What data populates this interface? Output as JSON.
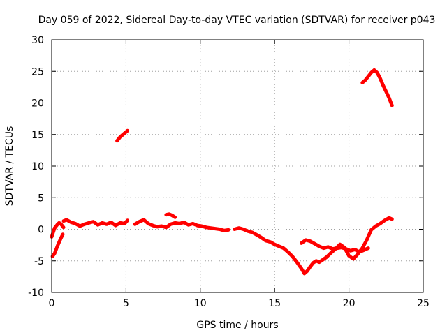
{
  "chart_data": {
    "type": "line",
    "title": "Day 059 of 2022, Sidereal Day-to-day VTEC variation (SDTVAR) for receiver p043",
    "xlabel": "GPS time / hours",
    "ylabel": "SDTVAR / TECUs",
    "xlim": [
      0,
      25
    ],
    "ylim": [
      -10,
      30
    ],
    "xticks": [
      0,
      5,
      10,
      15,
      20,
      25
    ],
    "yticks": [
      -10,
      -5,
      0,
      5,
      10,
      15,
      20,
      25,
      30
    ],
    "xtick_labels": [
      "0",
      "5",
      "10",
      "15",
      "20",
      "25"
    ],
    "ytick_labels": [
      "-10",
      "-5",
      "0",
      "5",
      "10",
      "15",
      "20",
      "25",
      "30"
    ],
    "grid": true,
    "series": [
      {
        "name": "seg1",
        "color": "#ff0000",
        "x": [
          0.0,
          0.1,
          0.2,
          0.3,
          0.4,
          0.5,
          0.6,
          0.7,
          0.8
        ],
        "y": [
          -1.2,
          -0.5,
          0.2,
          0.5,
          0.8,
          1.0,
          0.9,
          0.6,
          0.3
        ]
      },
      {
        "name": "seg2",
        "color": "#ff0000",
        "x": [
          0.05,
          0.2,
          0.4,
          0.6,
          0.75
        ],
        "y": [
          -4.3,
          -3.8,
          -2.6,
          -1.5,
          -0.8
        ]
      },
      {
        "name": "seg3",
        "color": "#ff0000",
        "x": [
          0.8,
          1.0,
          1.3,
          1.6,
          1.9,
          2.2,
          2.5,
          2.8,
          3.1,
          3.4,
          3.7,
          4.0,
          4.3,
          4.6,
          4.9,
          5.1
        ],
        "y": [
          1.3,
          1.5,
          1.1,
          0.9,
          0.5,
          0.8,
          1.0,
          1.2,
          0.7,
          1.0,
          0.8,
          1.1,
          0.6,
          1.0,
          0.9,
          1.4
        ]
      },
      {
        "name": "seg4",
        "color": "#ff0000",
        "x": [
          4.4,
          4.6,
          4.8,
          5.0,
          5.1
        ],
        "y": [
          14.0,
          14.6,
          15.0,
          15.4,
          15.6
        ]
      },
      {
        "name": "seg5",
        "color": "#ff0000",
        "x": [
          5.6,
          5.9,
          6.2,
          6.5,
          6.8,
          7.1,
          7.4,
          7.7,
          8.0,
          8.3,
          8.6,
          8.9,
          9.2,
          9.5,
          9.8,
          10.1,
          10.4,
          10.7,
          11.0,
          11.3,
          11.6,
          11.9
        ],
        "y": [
          0.8,
          1.2,
          1.5,
          0.9,
          0.6,
          0.4,
          0.5,
          0.3,
          0.8,
          1.0,
          0.9,
          1.1,
          0.7,
          0.9,
          0.6,
          0.5,
          0.3,
          0.2,
          0.1,
          0.0,
          -0.2,
          -0.1
        ]
      },
      {
        "name": "seg6",
        "color": "#ff0000",
        "x": [
          7.7,
          7.9,
          8.1,
          8.3
        ],
        "y": [
          2.3,
          2.4,
          2.2,
          1.9
        ]
      },
      {
        "name": "seg7",
        "color": "#ff0000",
        "x": [
          12.3,
          12.6,
          12.9,
          13.2,
          13.5,
          13.8,
          14.1,
          14.4,
          14.7,
          15.0,
          15.3,
          15.6,
          15.9,
          16.2,
          16.5,
          16.8,
          17.0,
          17.2,
          17.4,
          17.6,
          17.8,
          18.0,
          18.2,
          18.5,
          18.8,
          19.1,
          19.4,
          19.7,
          20.0,
          20.3,
          20.6,
          20.9,
          21.2,
          21.5,
          21.8,
          22.1,
          22.4,
          22.7,
          22.9
        ],
        "y": [
          0.0,
          0.2,
          0.0,
          -0.3,
          -0.5,
          -0.9,
          -1.3,
          -1.8,
          -2.0,
          -2.4,
          -2.7,
          -3.0,
          -3.6,
          -4.3,
          -5.2,
          -6.2,
          -7.0,
          -6.6,
          -5.9,
          -5.3,
          -5.0,
          -5.2,
          -4.9,
          -4.4,
          -3.7,
          -3.1,
          -2.4,
          -2.9,
          -4.2,
          -4.7,
          -3.9,
          -3.0,
          -1.7,
          -0.1,
          0.5,
          0.9,
          1.4,
          1.8,
          1.6
        ]
      },
      {
        "name": "seg8",
        "color": "#ff0000",
        "x": [
          16.8,
          17.1,
          17.4,
          17.7,
          18.0,
          18.3,
          18.6,
          18.9,
          19.2,
          19.5,
          19.8,
          20.1,
          20.4,
          20.7,
          21.0,
          21.3
        ],
        "y": [
          -2.2,
          -1.7,
          -1.9,
          -2.3,
          -2.7,
          -3.0,
          -2.8,
          -3.1,
          -3.0,
          -2.9,
          -3.1,
          -3.4,
          -3.2,
          -3.6,
          -3.3,
          -3.0
        ]
      },
      {
        "name": "seg9",
        "color": "#ff0000",
        "x": [
          20.9,
          21.1,
          21.3,
          21.5,
          21.7,
          21.9,
          22.1,
          22.3,
          22.5,
          22.7,
          22.9
        ],
        "y": [
          23.2,
          23.6,
          24.2,
          24.8,
          25.2,
          24.8,
          23.9,
          22.8,
          21.8,
          20.8,
          19.6
        ]
      }
    ]
  }
}
